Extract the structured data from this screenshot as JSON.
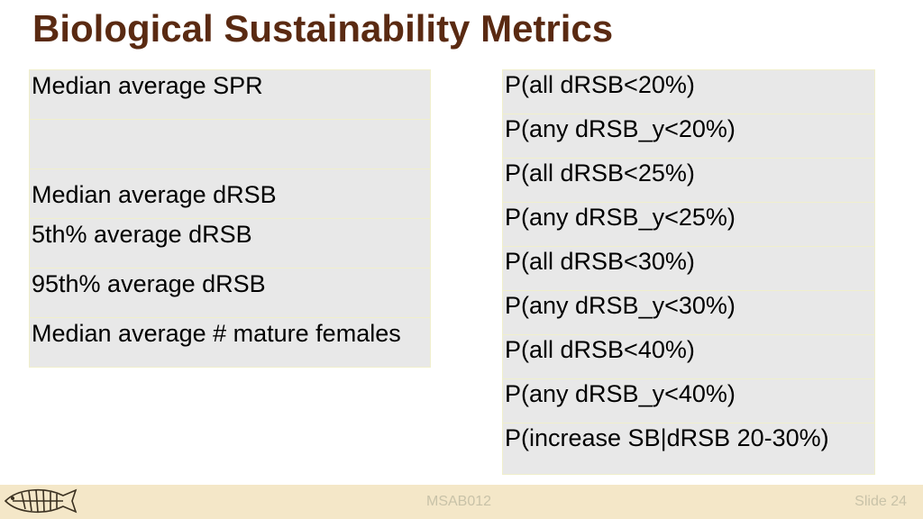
{
  "title": "Biological Sustainability Metrics",
  "left_table": {
    "rows": [
      "Median average SPR",
      "",
      "Median average dRSB",
      "5th% average dRSB",
      "95th% average dRSB",
      "Median average # mature females"
    ]
  },
  "right_table": {
    "rows": [
      "P(all dRSB<20%)",
      "P(any dRSB_y<20%)",
      "P(all dRSB<25%)",
      "P(any dRSB_y<25%)",
      "P(all dRSB<30%)",
      "P(any dRSB_y<30%)",
      "P(all dRSB<40%)",
      "P(any dRSB_y<40%)",
      "P(increase SB|dRSB 20-30%)"
    ]
  },
  "footer": {
    "center_text": "MSAB012",
    "slide_number": "Slide 24",
    "logo_icon": "fish-skeleton-icon"
  },
  "colors": {
    "title": "#5a2a12",
    "cell_background": "#e8e8e8",
    "cell_border": "#f0efcc",
    "footer_background": "#f4e7c8",
    "footer_text": "#c8c2a8"
  }
}
